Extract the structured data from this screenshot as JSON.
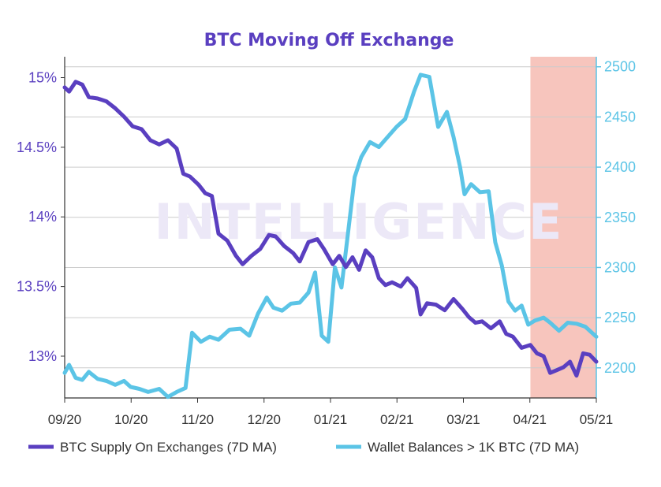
{
  "chart_data": {
    "type": "line",
    "title": "BTC Moving Off Exchange",
    "watermark": "INTELLIGENCE",
    "x_tick_labels": [
      "09/20",
      "10/20",
      "11/20",
      "12/20",
      "01/21",
      "02/21",
      "03/21",
      "04/21",
      "05/21"
    ],
    "x_range": [
      "2020-09-01",
      "2021-05-01"
    ],
    "highlight_range": [
      "2021-04-01",
      "2021-05-01"
    ],
    "y_left": {
      "ticks": [
        "13%",
        "13.5%",
        "14%",
        "14.5%",
        "15%"
      ],
      "range": [
        12.7,
        15.15
      ]
    },
    "y_right": {
      "ticks": [
        "2200",
        "2250",
        "2300",
        "2350",
        "2400",
        "2450",
        "2500"
      ],
      "range": [
        2170,
        2510
      ]
    },
    "grid": true,
    "legend_position": "bottom",
    "colors": {
      "title": "#5a3fc0",
      "left_axis": "#5a3fc0",
      "right_axis": "#5bc4e6",
      "highlight": "#f7c5bd",
      "grid": "#cccccc"
    },
    "series": [
      {
        "name": "BTC Supply On Exchanges (7D MA)",
        "axis": "left",
        "color": "#5a3fc0",
        "points": [
          [
            "2020-09-01",
            14.93
          ],
          [
            "2020-09-03",
            14.9
          ],
          [
            "2020-09-06",
            14.97
          ],
          [
            "2020-09-09",
            14.95
          ],
          [
            "2020-09-12",
            14.86
          ],
          [
            "2020-09-16",
            14.85
          ],
          [
            "2020-09-20",
            14.83
          ],
          [
            "2020-09-24",
            14.78
          ],
          [
            "2020-09-28",
            14.72
          ],
          [
            "2020-10-02",
            14.65
          ],
          [
            "2020-10-06",
            14.63
          ],
          [
            "2020-10-10",
            14.55
          ],
          [
            "2020-10-14",
            14.52
          ],
          [
            "2020-10-18",
            14.55
          ],
          [
            "2020-10-22",
            14.49
          ],
          [
            "2020-10-25",
            14.31
          ],
          [
            "2020-10-28",
            14.29
          ],
          [
            "2020-11-01",
            14.23
          ],
          [
            "2020-11-04",
            14.17
          ],
          [
            "2020-11-07",
            14.15
          ],
          [
            "2020-11-10",
            13.88
          ],
          [
            "2020-11-14",
            13.83
          ],
          [
            "2020-11-18",
            13.72
          ],
          [
            "2020-11-21",
            13.66
          ],
          [
            "2020-11-25",
            13.72
          ],
          [
            "2020-11-29",
            13.77
          ],
          [
            "2020-12-03",
            13.87
          ],
          [
            "2020-12-06",
            13.86
          ],
          [
            "2020-12-10",
            13.79
          ],
          [
            "2020-12-14",
            13.74
          ],
          [
            "2020-12-17",
            13.68
          ],
          [
            "2020-12-21",
            13.82
          ],
          [
            "2020-12-25",
            13.84
          ],
          [
            "2020-12-28",
            13.77
          ],
          [
            "2021-01-01",
            13.66
          ],
          [
            "2021-01-04",
            13.72
          ],
          [
            "2021-01-07",
            13.64
          ],
          [
            "2021-01-10",
            13.71
          ],
          [
            "2021-01-13",
            13.62
          ],
          [
            "2021-01-16",
            13.76
          ],
          [
            "2021-01-19",
            13.71
          ],
          [
            "2021-01-22",
            13.56
          ],
          [
            "2021-01-25",
            13.51
          ],
          [
            "2021-01-28",
            13.53
          ],
          [
            "2021-02-01",
            13.5
          ],
          [
            "2021-02-04",
            13.56
          ],
          [
            "2021-02-08",
            13.49
          ],
          [
            "2021-02-10",
            13.3
          ],
          [
            "2021-02-13",
            13.38
          ],
          [
            "2021-02-17",
            13.37
          ],
          [
            "2021-02-21",
            13.33
          ],
          [
            "2021-02-25",
            13.41
          ],
          [
            "2021-03-01",
            13.34
          ],
          [
            "2021-03-04",
            13.28
          ],
          [
            "2021-03-07",
            13.24
          ],
          [
            "2021-03-10",
            13.25
          ],
          [
            "2021-03-14",
            13.2
          ],
          [
            "2021-03-18",
            13.25
          ],
          [
            "2021-03-21",
            13.16
          ],
          [
            "2021-03-24",
            13.14
          ],
          [
            "2021-03-28",
            13.06
          ],
          [
            "2021-04-01",
            13.08
          ],
          [
            "2021-04-04",
            13.02
          ],
          [
            "2021-04-07",
            13.0
          ],
          [
            "2021-04-10",
            12.88
          ],
          [
            "2021-04-13",
            12.9
          ],
          [
            "2021-04-16",
            12.92
          ],
          [
            "2021-04-19",
            12.96
          ],
          [
            "2021-04-22",
            12.86
          ],
          [
            "2021-04-25",
            13.02
          ],
          [
            "2021-04-28",
            13.01
          ],
          [
            "2021-05-01",
            12.96
          ]
        ]
      },
      {
        "name": "Wallet Balances > 1K BTC (7D MA)",
        "axis": "right",
        "color": "#5bc4e6",
        "points": [
          [
            "2020-09-01",
            2195
          ],
          [
            "2020-09-03",
            2203
          ],
          [
            "2020-09-06",
            2190
          ],
          [
            "2020-09-09",
            2188
          ],
          [
            "2020-09-12",
            2196
          ],
          [
            "2020-09-16",
            2189
          ],
          [
            "2020-09-20",
            2187
          ],
          [
            "2020-09-24",
            2183
          ],
          [
            "2020-09-28",
            2187
          ],
          [
            "2020-10-01",
            2181
          ],
          [
            "2020-10-05",
            2179
          ],
          [
            "2020-10-09",
            2176
          ],
          [
            "2020-10-14",
            2179
          ],
          [
            "2020-10-18",
            2171
          ],
          [
            "2020-10-22",
            2176
          ],
          [
            "2020-10-26",
            2180
          ],
          [
            "2020-10-29",
            2235
          ],
          [
            "2020-11-02",
            2226
          ],
          [
            "2020-11-06",
            2231
          ],
          [
            "2020-11-10",
            2228
          ],
          [
            "2020-11-15",
            2238
          ],
          [
            "2020-11-20",
            2239
          ],
          [
            "2020-11-24",
            2232
          ],
          [
            "2020-11-28",
            2254
          ],
          [
            "2020-12-02",
            2270
          ],
          [
            "2020-12-05",
            2260
          ],
          [
            "2020-12-09",
            2257
          ],
          [
            "2020-12-13",
            2264
          ],
          [
            "2020-12-17",
            2265
          ],
          [
            "2020-12-21",
            2275
          ],
          [
            "2020-12-24",
            2295
          ],
          [
            "2020-12-27",
            2232
          ],
          [
            "2020-12-30",
            2226
          ],
          [
            "2021-01-02",
            2300
          ],
          [
            "2021-01-05",
            2280
          ],
          [
            "2021-01-08",
            2335
          ],
          [
            "2021-01-11",
            2390
          ],
          [
            "2021-01-14",
            2410
          ],
          [
            "2021-01-18",
            2425
          ],
          [
            "2021-01-22",
            2420
          ],
          [
            "2021-01-26",
            2430
          ],
          [
            "2021-01-30",
            2440
          ],
          [
            "2021-02-03",
            2448
          ],
          [
            "2021-02-07",
            2475
          ],
          [
            "2021-02-10",
            2492
          ],
          [
            "2021-02-14",
            2490
          ],
          [
            "2021-02-18",
            2440
          ],
          [
            "2021-02-22",
            2455
          ],
          [
            "2021-02-25",
            2430
          ],
          [
            "2021-02-28",
            2400
          ],
          [
            "2021-03-02",
            2373
          ],
          [
            "2021-03-05",
            2383
          ],
          [
            "2021-03-09",
            2375
          ],
          [
            "2021-03-13",
            2376
          ],
          [
            "2021-03-16",
            2325
          ],
          [
            "2021-03-19",
            2302
          ],
          [
            "2021-03-22",
            2266
          ],
          [
            "2021-03-25",
            2257
          ],
          [
            "2021-03-28",
            2262
          ],
          [
            "2021-03-31",
            2243
          ],
          [
            "2021-04-03",
            2247
          ],
          [
            "2021-04-07",
            2250
          ],
          [
            "2021-04-10",
            2245
          ],
          [
            "2021-04-14",
            2237
          ],
          [
            "2021-04-18",
            2245
          ],
          [
            "2021-04-22",
            2244
          ],
          [
            "2021-04-26",
            2241
          ],
          [
            "2021-05-01",
            2231
          ]
        ]
      }
    ]
  }
}
